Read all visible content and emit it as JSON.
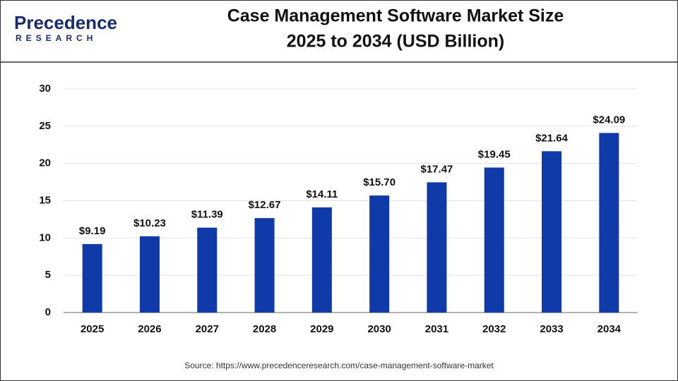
{
  "chart_data": {
    "type": "bar",
    "brand": "Precedence",
    "brand_sub": "RESEARCH",
    "title": "Case Management Software Market Size",
    "subtitle": "2025 to 2034 (USD Billion)",
    "categories": [
      "2025",
      "2026",
      "2027",
      "2028",
      "2029",
      "2030",
      "2031",
      "2032",
      "2033",
      "2034"
    ],
    "values": [
      9.19,
      10.23,
      11.39,
      12.67,
      14.11,
      15.7,
      17.47,
      19.45,
      21.64,
      24.09
    ],
    "value_labels": [
      "$9.19",
      "$10.23",
      "$11.39",
      "$12.67",
      "$14.11",
      "$15.70",
      "$17.47",
      "$19.45",
      "$21.64",
      "$24.09"
    ],
    "color": "#0f3aa8",
    "ylim": [
      0,
      30
    ],
    "yticks": [
      0,
      5,
      10,
      15,
      20,
      25,
      30
    ],
    "grid": true,
    "source": "Source: https://www.precedenceresearch.com/case-management-software-market"
  }
}
